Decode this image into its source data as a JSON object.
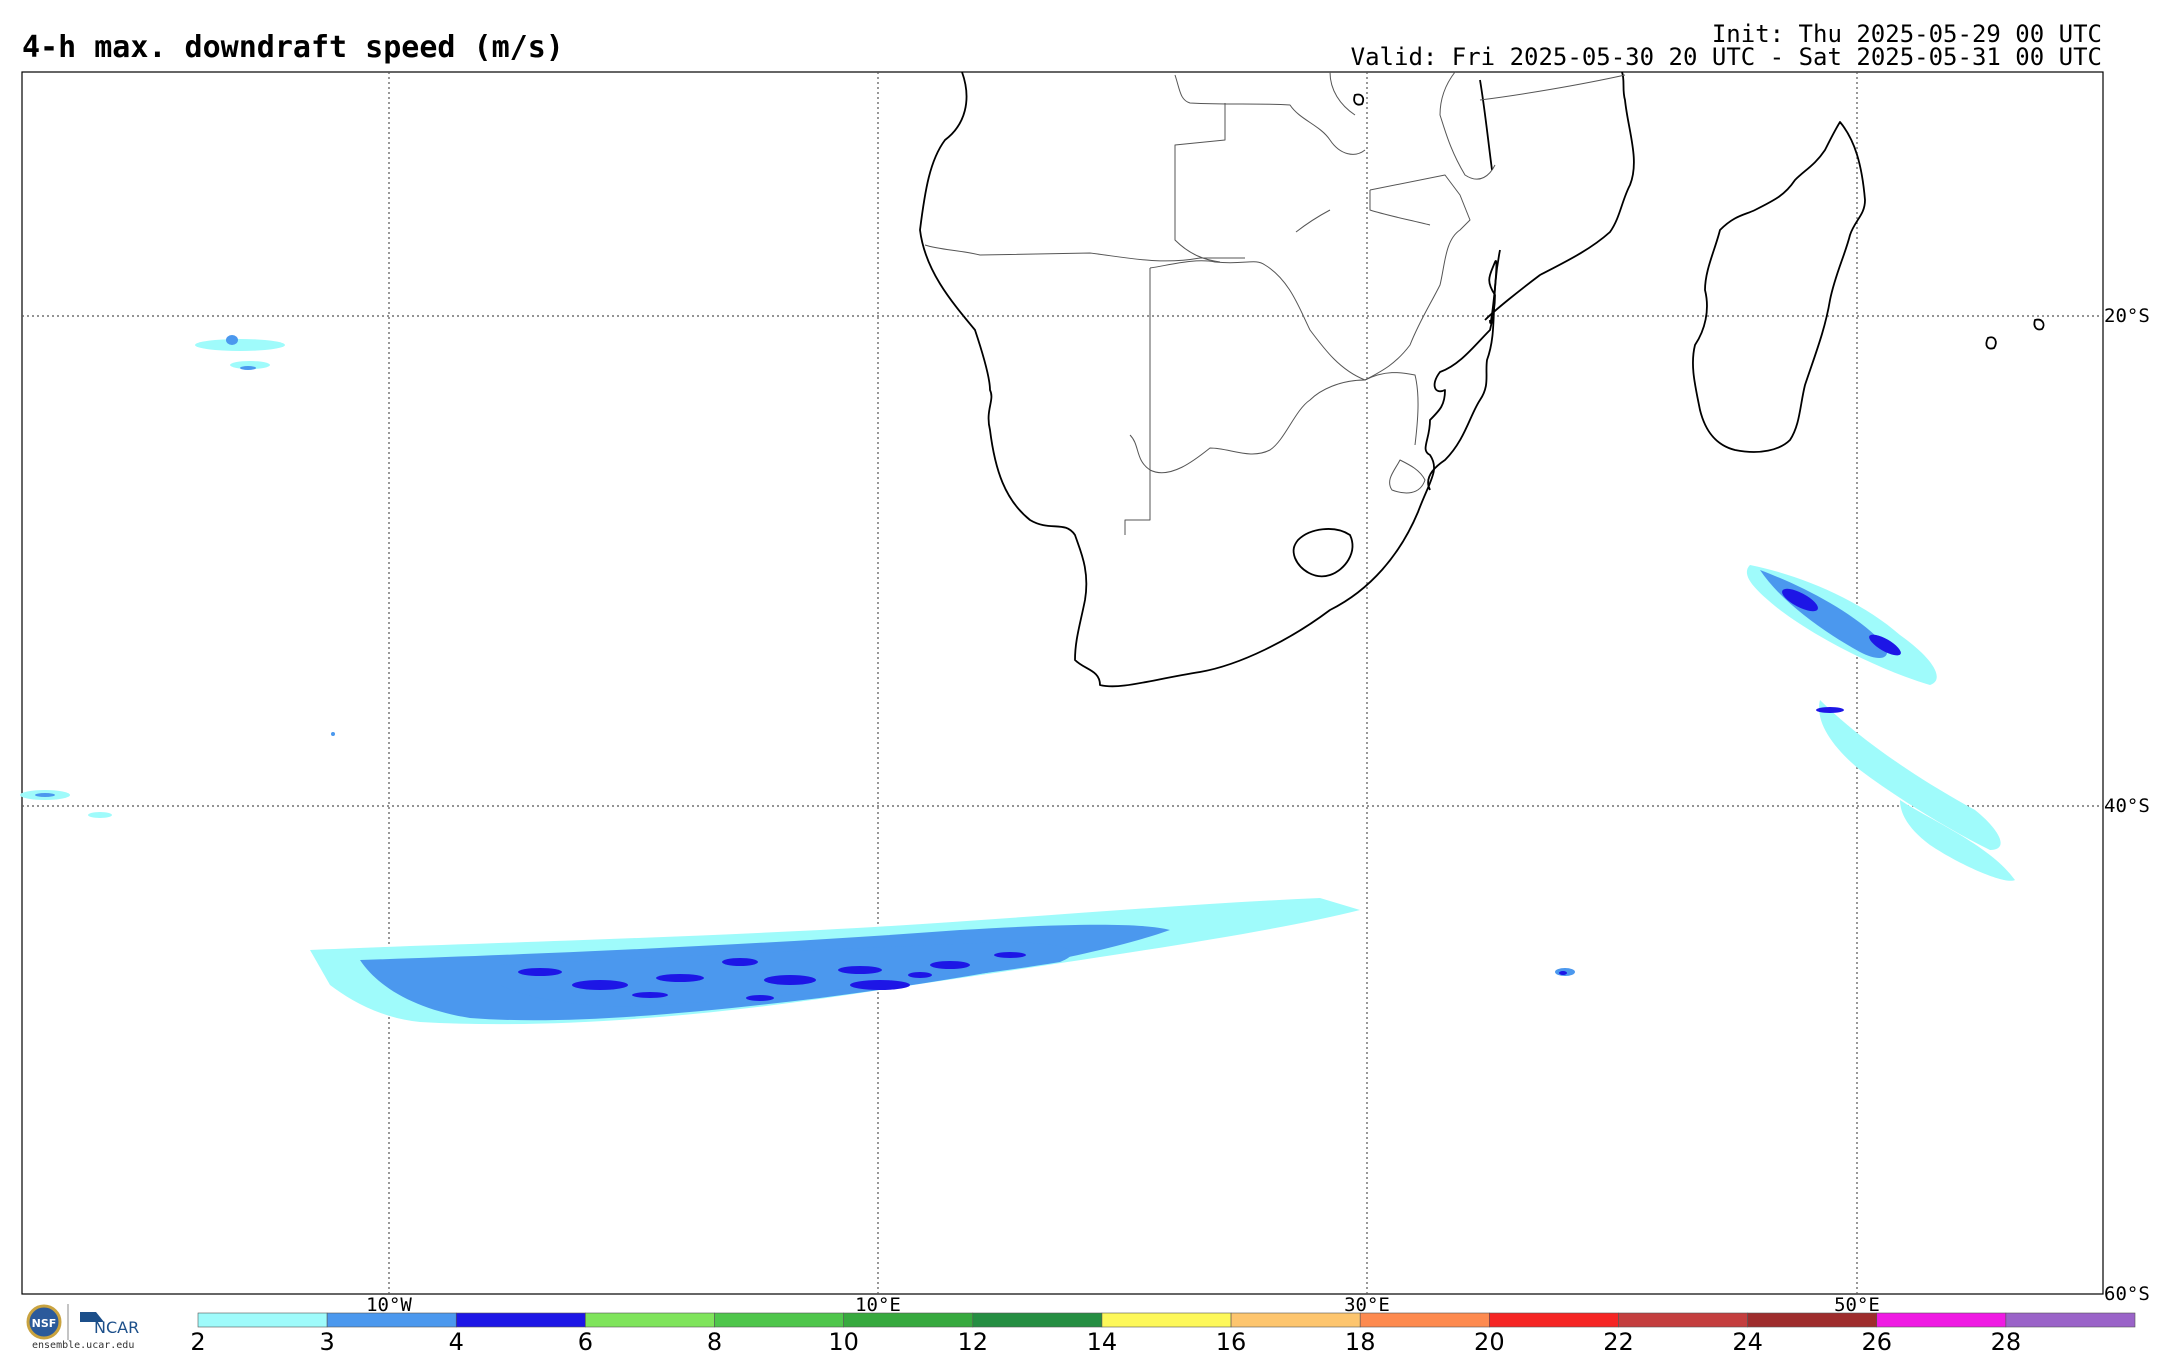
{
  "header": {
    "title": "4-h max. downdraft speed (m/s)",
    "init": "Init: Thu 2025-05-29 00 UTC",
    "valid": "Valid: Fri 2025-05-30 20 UTC - Sat 2025-05-31 00 UTC"
  },
  "map": {
    "lon_labels": [
      "10°W",
      "10°E",
      "30°E",
      "50°E"
    ],
    "lat_labels": [
      "20°S",
      "40°S",
      "60°S"
    ],
    "border_color": "#000000",
    "grid_style": "dotted"
  },
  "colorbar": {
    "ticks": [
      "2",
      "3",
      "4",
      "6",
      "8",
      "10",
      "12",
      "14",
      "16",
      "18",
      "20",
      "22",
      "24",
      "26",
      "28"
    ],
    "colors": [
      "#9ffbfb",
      "#4b98ee",
      "#1d16e6",
      "#7fe45b",
      "#4fc64b",
      "#37a93e",
      "#258e42",
      "#fdf85a",
      "#fdc56e",
      "#fd8a4f",
      "#f52524",
      "#c43e3e",
      "#9e2c2c",
      "#ef1ae3",
      "#9a63c8"
    ]
  },
  "logo": {
    "brand": "NCAR",
    "seal": "NSF",
    "url": "ensemble.ucar.edu"
  }
}
